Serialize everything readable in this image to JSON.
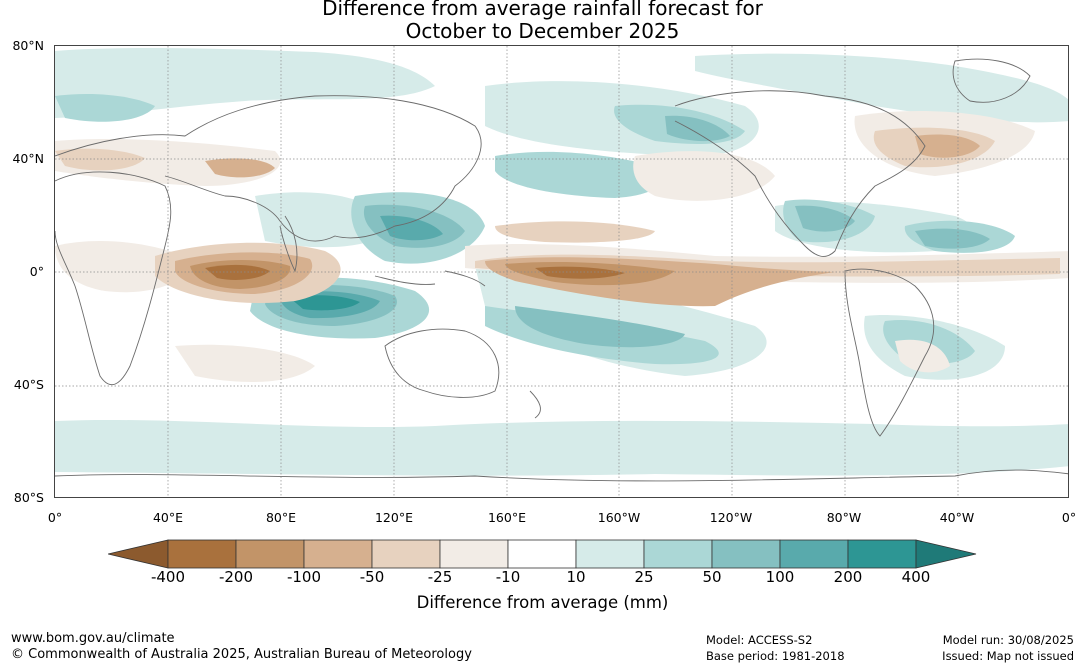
{
  "title": {
    "line1": "Difference from average rainfall forecast for",
    "line2": "October to December 2025"
  },
  "map": {
    "lat_labels": [
      "80°N",
      "40°N",
      "0°",
      "40°S",
      "80°S"
    ],
    "lon_labels": [
      "0°",
      "40°E",
      "80°E",
      "120°E",
      "160°E",
      "160°W",
      "120°W",
      "80°W",
      "40°W",
      "0°"
    ]
  },
  "colorbar": {
    "tick_labels": [
      "-400",
      "-200",
      "-100",
      "-50",
      "-25",
      "-10",
      "10",
      "25",
      "50",
      "100",
      "200",
      "400"
    ],
    "colors": [
      "#8c5a2e",
      "#a9713d",
      "#c29468",
      "#d6b08f",
      "#e7d2bf",
      "#f2ece6",
      "#ffffff",
      "#d6ebe9",
      "#abd7d6",
      "#85c0c1",
      "#59aaac",
      "#2d9694",
      "#1f7a78"
    ],
    "label": "Difference from average (mm)"
  },
  "footer": {
    "website": "www.bom.gov.au/climate",
    "copyright": "© Commonwealth of Australia 2025, Australian Bureau of Meteorology",
    "model": "Model: ACCESS-S2",
    "base_period": "Base period: 1981-2018",
    "model_run": "Model run: 30/08/2025",
    "issued": "Issued: Map not issued"
  }
}
